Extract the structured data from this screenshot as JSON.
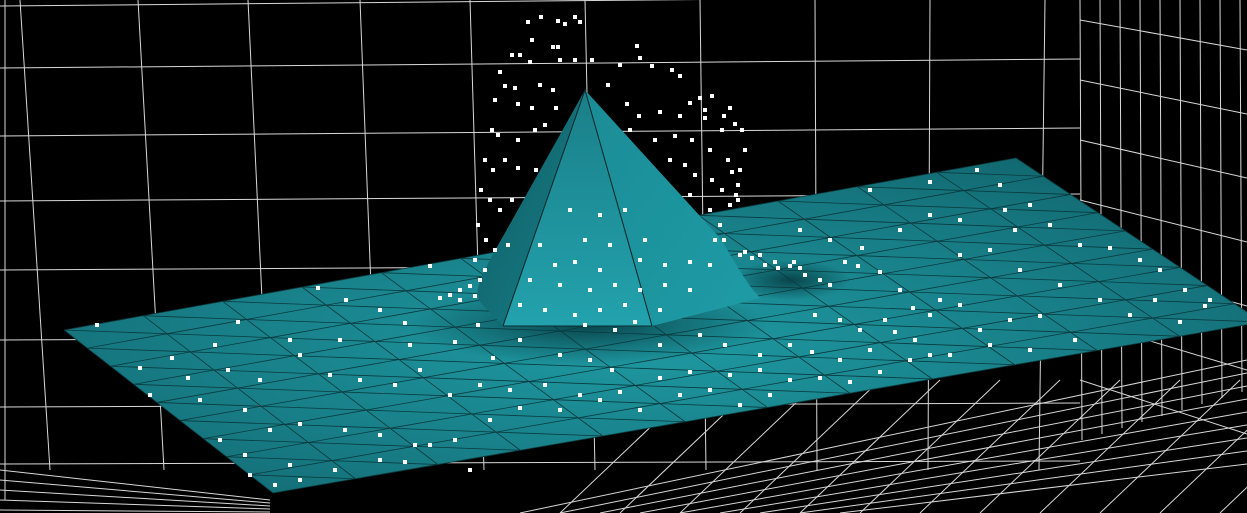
{
  "scene": {
    "background_color": "#000000",
    "grid_color": "#d8d8d8",
    "surface_color": "#1a7d86",
    "surface_highlight_color": "#2aa3ad",
    "surface_shadow_color": "#0b4a51",
    "mesh_line_color": "#0a3a3e",
    "point_color": "#ffffff",
    "objects": [
      "back-grid-wall",
      "right-grid-wall",
      "floor-grid",
      "flat-surface-mesh",
      "pyramid-peak",
      "point-cloud"
    ]
  }
}
